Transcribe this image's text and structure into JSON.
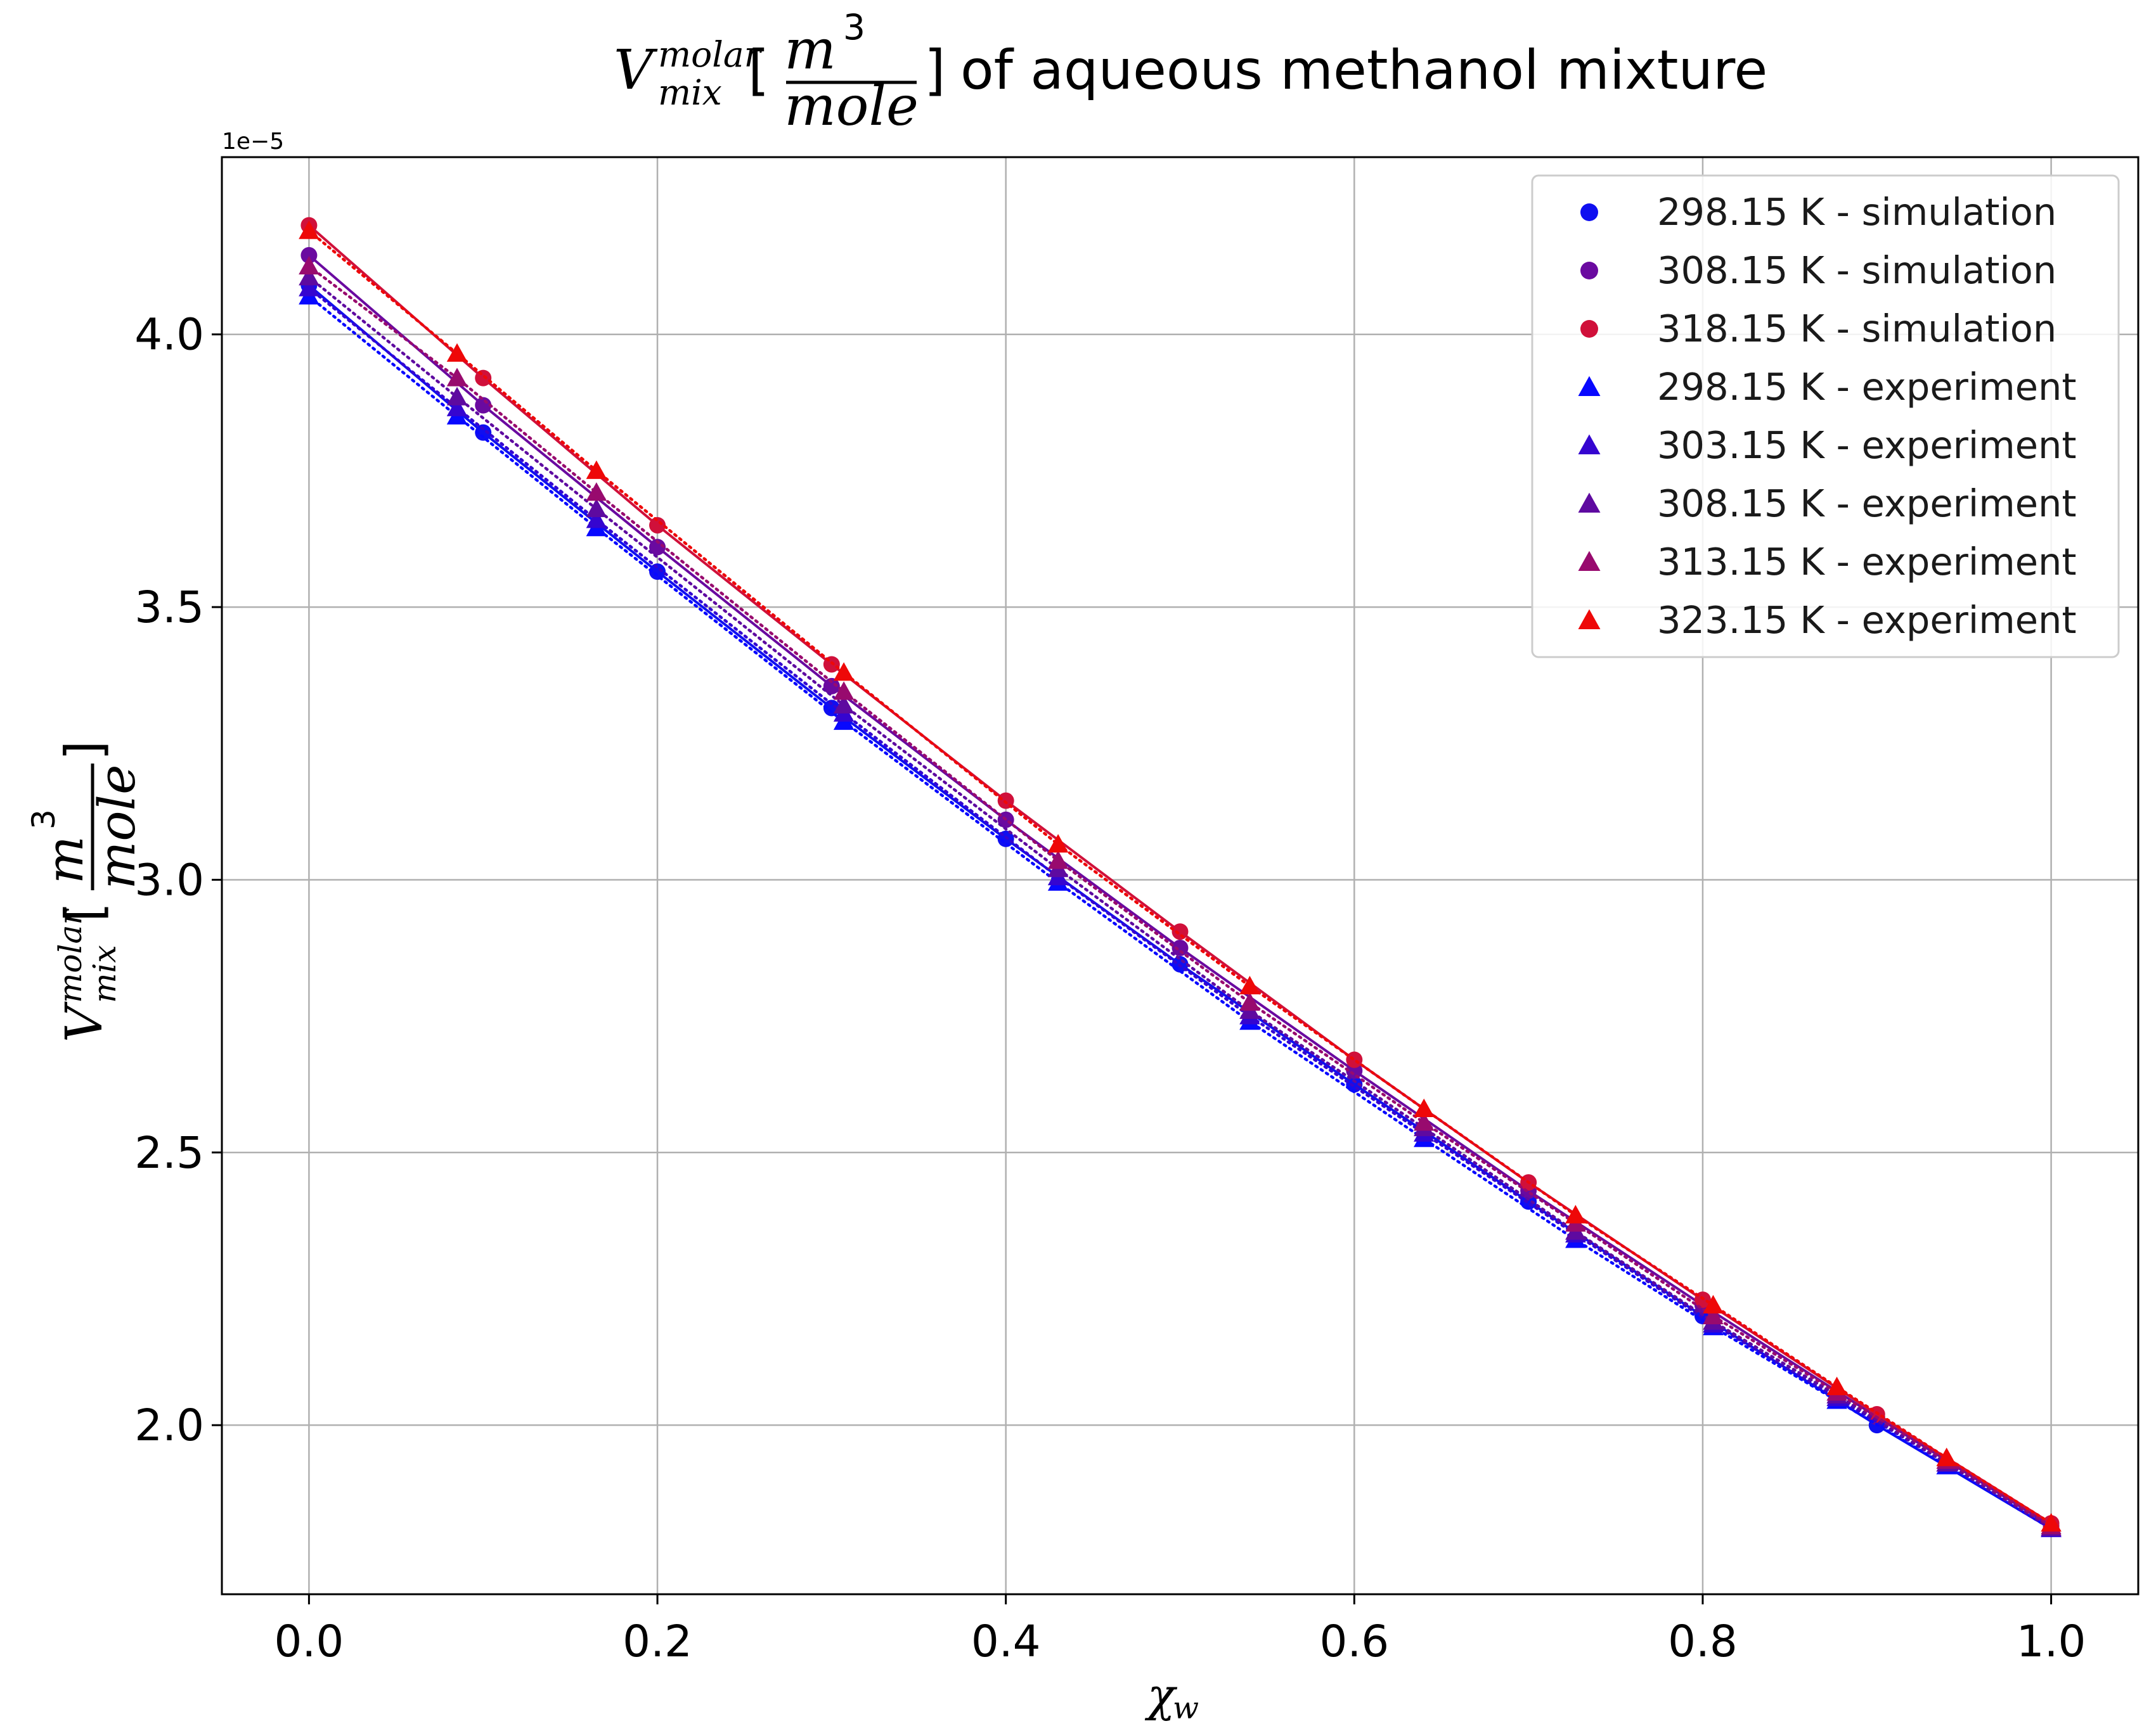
{
  "chart_data": {
    "type": "scatter",
    "title": {
      "symbol": "V",
      "superscript": "molar",
      "subscript": "mix",
      "unit_numerator": "m",
      "unit_numerator_power": "3",
      "unit_denominator": "mole",
      "open_bracket": "[",
      "close_bracket": "]",
      "suffix": "of aqueous methanol mixture"
    },
    "xlabel": {
      "symbol": "χ",
      "subscript": "w"
    },
    "ylabel": {
      "symbol": "V",
      "superscript": "molar",
      "subscript": "mix",
      "unit_numerator": "m",
      "unit_numerator_power": "3",
      "unit_denominator": "mole",
      "open_bracket": "[",
      "close_bracket": "]"
    },
    "y_offset_label": "1e−5",
    "xlim": [
      -0.05,
      1.05
    ],
    "ylim": [
      1.69,
      4.325
    ],
    "xticks": [
      0.0,
      0.2,
      0.4,
      0.6,
      0.8,
      1.0
    ],
    "xtick_labels": [
      "0.0",
      "0.2",
      "0.4",
      "0.6",
      "0.8",
      "1.0"
    ],
    "yticks": [
      2.0,
      2.5,
      3.0,
      3.5,
      4.0
    ],
    "ytick_labels": [
      "2.0",
      "2.5",
      "3.0",
      "3.5",
      "4.0"
    ],
    "grid": true,
    "legend_position": "top-right",
    "series": [
      {
        "name": "298.15 K - simulation",
        "kind": "simulation",
        "marker": "circle",
        "color": "#0f0ff0",
        "line": "solid",
        "x": [
          0.0,
          0.1,
          0.2,
          0.3,
          0.4,
          0.5,
          0.6,
          0.7,
          0.8,
          0.9,
          1.0
        ],
        "y": [
          4.09,
          3.82,
          3.565,
          3.315,
          3.075,
          2.845,
          2.625,
          2.41,
          2.2,
          2.0,
          1.81
        ]
      },
      {
        "name": "308.15 K - simulation",
        "kind": "simulation",
        "marker": "circle",
        "color": "#6a0aa0",
        "line": "solid",
        "x": [
          0.0,
          0.1,
          0.2,
          0.3,
          0.4,
          0.5,
          0.6,
          0.7,
          0.8,
          0.9,
          1.0
        ],
        "y": [
          4.145,
          3.87,
          3.61,
          3.355,
          3.11,
          2.875,
          2.65,
          2.43,
          2.22,
          2.015,
          1.815
        ]
      },
      {
        "name": "318.15 K - simulation",
        "kind": "simulation",
        "marker": "circle",
        "color": "#d0103a",
        "line": "solid",
        "x": [
          0.0,
          0.1,
          0.2,
          0.3,
          0.4,
          0.5,
          0.6,
          0.7,
          0.8,
          0.9,
          1.0
        ],
        "y": [
          4.2,
          3.92,
          3.65,
          3.395,
          3.145,
          2.905,
          2.67,
          2.445,
          2.23,
          2.02,
          1.82
        ]
      },
      {
        "name": "298.15 K - experiment",
        "kind": "experiment",
        "marker": "triangle",
        "color": "#0808ff",
        "line": "dotted",
        "x": [
          0.0,
          0.085,
          0.165,
          0.307,
          0.43,
          0.54,
          0.64,
          0.727,
          0.806,
          0.877,
          0.94,
          1.0
        ],
        "y": [
          4.07,
          3.85,
          3.645,
          3.29,
          2.995,
          2.74,
          2.525,
          2.34,
          2.18,
          2.045,
          1.925,
          1.81
        ]
      },
      {
        "name": "303.15 K - experiment",
        "kind": "experiment",
        "marker": "triangle",
        "color": "#3505d0",
        "line": "dotted",
        "x": [
          0.0,
          0.085,
          0.165,
          0.307,
          0.43,
          0.54,
          0.64,
          0.727,
          0.806,
          0.877,
          0.94,
          1.0
        ],
        "y": [
          4.085,
          3.865,
          3.66,
          3.305,
          3.005,
          2.75,
          2.535,
          2.35,
          2.185,
          2.05,
          1.93,
          1.81
        ]
      },
      {
        "name": "308.15 K - experiment",
        "kind": "experiment",
        "marker": "triangle",
        "color": "#5e0aa0",
        "line": "dotted",
        "x": [
          0.0,
          0.085,
          0.165,
          0.307,
          0.43,
          0.54,
          0.64,
          0.727,
          0.806,
          0.877,
          0.94,
          1.0
        ],
        "y": [
          4.105,
          3.885,
          3.68,
          3.32,
          3.02,
          2.76,
          2.545,
          2.355,
          2.19,
          2.055,
          1.93,
          1.812
        ]
      },
      {
        "name": "313.15 K - experiment",
        "kind": "experiment",
        "marker": "triangle",
        "color": "#980a6e",
        "line": "dotted",
        "x": [
          0.0,
          0.085,
          0.165,
          0.307,
          0.43,
          0.54,
          0.64,
          0.727,
          0.806,
          0.877,
          0.94,
          1.0
        ],
        "y": [
          4.125,
          3.92,
          3.71,
          3.345,
          3.035,
          2.775,
          2.555,
          2.37,
          2.2,
          2.06,
          1.935,
          1.815
        ]
      },
      {
        "name": "323.15 K - experiment",
        "kind": "experiment",
        "marker": "triangle",
        "color": "#ee0808",
        "line": "dotted",
        "x": [
          0.0,
          0.085,
          0.165,
          0.307,
          0.43,
          0.54,
          0.64,
          0.727,
          0.806,
          0.877,
          0.94,
          1.0
        ],
        "y": [
          4.19,
          3.965,
          3.75,
          3.38,
          3.065,
          2.805,
          2.58,
          2.385,
          2.22,
          2.07,
          1.94,
          1.82
        ]
      }
    ]
  }
}
